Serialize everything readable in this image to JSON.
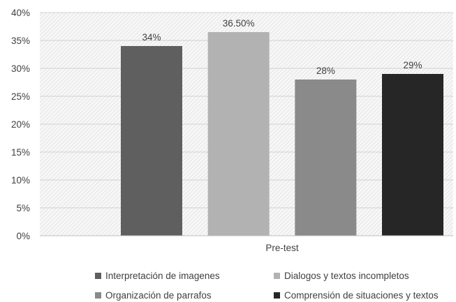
{
  "chart_data": {
    "type": "bar",
    "categories": [
      "Pre-test"
    ],
    "series": [
      {
        "name": "Interpretación de imagenes",
        "values": [
          34
        ],
        "label": "34%",
        "color": "#5f5f5f"
      },
      {
        "name": "Dialogos y textos incompletos",
        "values": [
          36.5
        ],
        "label": "36.50%",
        "color": "#b2b2b2"
      },
      {
        "name": "Organización de parrafos",
        "values": [
          28
        ],
        "label": "28%",
        "color": "#8a8a8a"
      },
      {
        "name": "Comprensión de situaciones y textos",
        "values": [
          29
        ],
        "label": "29%",
        "color": "#262626"
      }
    ],
    "yticks": [
      "0%",
      "5%",
      "10%",
      "15%",
      "20%",
      "25%",
      "30%",
      "35%",
      "40%"
    ],
    "ylim": [
      0,
      40
    ],
    "xlabel": "",
    "ylabel": "",
    "grid": true,
    "legend_position": "bottom"
  }
}
